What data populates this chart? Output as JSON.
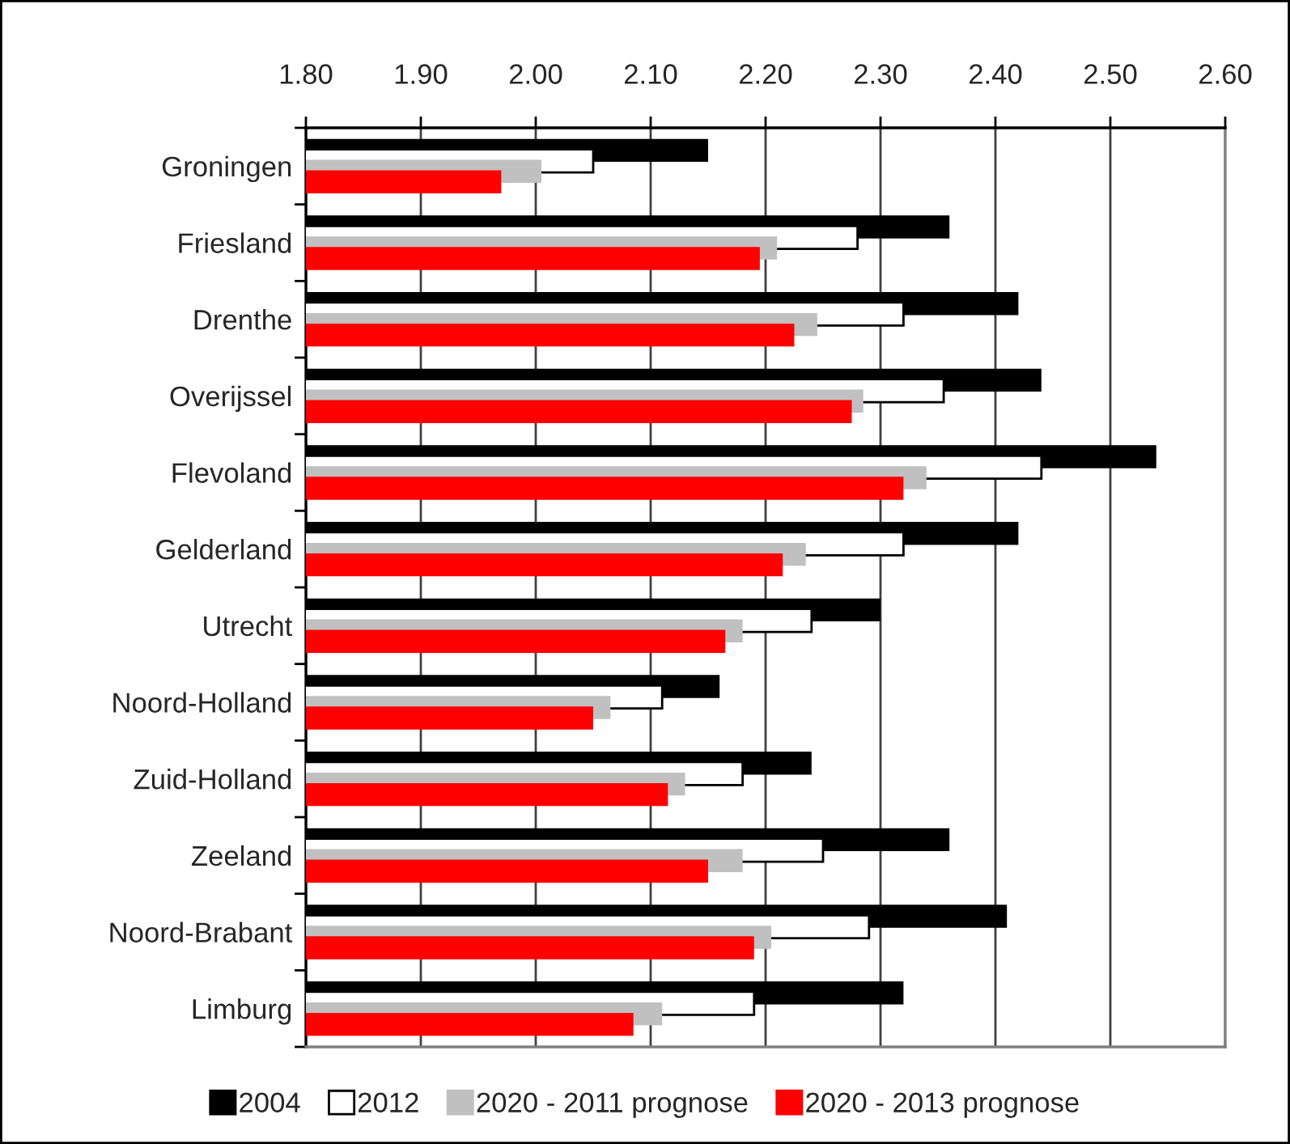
{
  "chart_data": {
    "type": "bar",
    "orientation": "horizontal",
    "categories": [
      "Groningen",
      "Friesland",
      "Drenthe",
      "Overijssel",
      "Flevoland",
      "Gelderland",
      "Utrecht",
      "Noord-Holland",
      "Zuid-Holland",
      "Zeeland",
      "Noord-Brabant",
      "Limburg"
    ],
    "series": [
      {
        "name": "2004",
        "color": "#000000",
        "values": [
          2.15,
          2.36,
          2.42,
          2.44,
          2.54,
          2.42,
          2.3,
          2.16,
          2.24,
          2.36,
          2.41,
          2.32
        ]
      },
      {
        "name": "2012",
        "color": "#ffffff",
        "values": [
          2.05,
          2.28,
          2.32,
          2.355,
          2.44,
          2.32,
          2.24,
          2.11,
          2.18,
          2.25,
          2.29,
          2.19
        ]
      },
      {
        "name": "2020 - 2011 prognose",
        "color": "#c0c0c0",
        "values": [
          2.005,
          2.21,
          2.245,
          2.285,
          2.34,
          2.235,
          2.18,
          2.065,
          2.13,
          2.18,
          2.205,
          2.11
        ]
      },
      {
        "name": "2020 - 2013 prognose",
        "color": "#ff0000",
        "values": [
          1.97,
          2.195,
          2.225,
          2.275,
          2.32,
          2.215,
          2.165,
          2.05,
          2.115,
          2.15,
          2.19,
          2.085
        ]
      }
    ],
    "xlim": [
      1.8,
      2.6
    ],
    "xticks": [
      {
        "value": 1.8,
        "label": "1.80"
      },
      {
        "value": 1.9,
        "label": "1.90"
      },
      {
        "value": 2.0,
        "label": "2.00"
      },
      {
        "value": 2.1,
        "label": "2.10"
      },
      {
        "value": 2.2,
        "label": "2.20"
      },
      {
        "value": 2.3,
        "label": "2.30"
      },
      {
        "value": 2.4,
        "label": "2.40"
      },
      {
        "value": 2.5,
        "label": "2.50"
      },
      {
        "value": 2.6,
        "label": "2.60"
      }
    ],
    "grid": "x",
    "legend": "bottom"
  }
}
